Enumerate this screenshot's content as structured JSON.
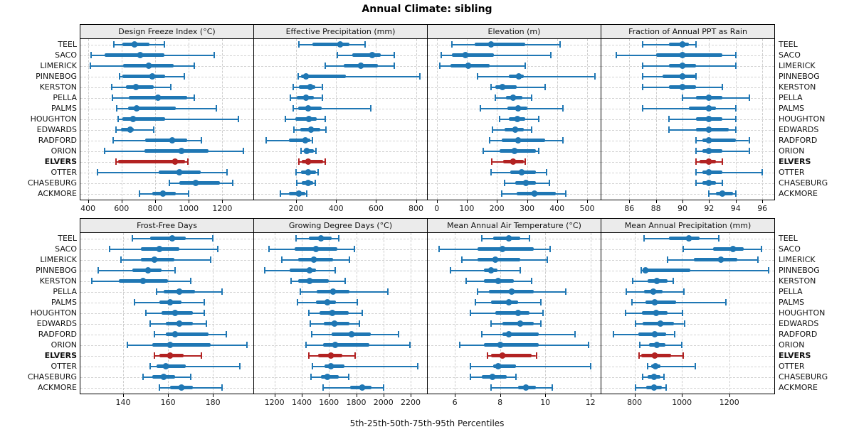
{
  "title": "Annual Climate: sibling",
  "axis_label": "5th-25th-50th-75th-95th Percentiles",
  "colors": {
    "bar": "#1f77b4",
    "highlight": "#b22222",
    "grid": "#cdcdcd",
    "header_bg": "#ebebeb",
    "border": "#000000"
  },
  "stations": [
    "TEEL",
    "SACO",
    "LIMERICK",
    "PINNEBOG",
    "KERSTON",
    "PELLA",
    "PALMS",
    "HOUGHTON",
    "EDWARDS",
    "RADFORD",
    "ORION",
    "ELVERS",
    "OTTER",
    "CHASEBURG",
    "ACKMORE"
  ],
  "highlight_station": "ELVERS",
  "chart_data": {
    "type": "percentile-dotplot",
    "percentiles": [
      "5th",
      "25th",
      "50th",
      "75th",
      "95th"
    ],
    "note": "Each row: [p5, p25, p50, p75, p95]; thick bar = p25-p75, dot = p50, whisker caps = p5/p95",
    "legend_position": "none",
    "grid": "dashed",
    "panels": [
      {
        "title": "Design Freeze Index (°C)",
        "grid_row": 0,
        "xlim": [
          355,
          1385
        ],
        "ticks": [
          400,
          600,
          800,
          1000,
          1200
        ],
        "series": [
          [
            555,
            605,
            675,
            765,
            855
          ],
          [
            420,
            500,
            710,
            855,
            1150
          ],
          [
            415,
            610,
            760,
            910,
            1035
          ],
          [
            590,
            605,
            785,
            860,
            975
          ],
          [
            540,
            625,
            685,
            790,
            895
          ],
          [
            545,
            645,
            815,
            990,
            1035
          ],
          [
            570,
            640,
            690,
            925,
            1165
          ],
          [
            580,
            605,
            670,
            860,
            1295
          ],
          [
            565,
            595,
            650,
            675,
            790
          ],
          [
            550,
            740,
            900,
            990,
            1075
          ],
          [
            500,
            735,
            955,
            1120,
            1325
          ],
          [
            565,
            580,
            920,
            980,
            995
          ],
          [
            455,
            820,
            945,
            1070,
            1230
          ],
          [
            885,
            945,
            1040,
            1185,
            1260
          ],
          [
            705,
            785,
            845,
            925,
            1000
          ]
        ]
      },
      {
        "title": "Effective Precipitation (mm)",
        "grid_row": 0,
        "xlim": [
          -10,
          855
        ],
        "ticks": [
          200,
          400,
          600,
          800
        ],
        "series": [
          [
            215,
            280,
            420,
            465,
            545
          ],
          [
            405,
            480,
            580,
            625,
            690
          ],
          [
            345,
            440,
            525,
            610,
            690
          ],
          [
            210,
            225,
            250,
            450,
            820
          ],
          [
            185,
            215,
            270,
            295,
            330
          ],
          [
            170,
            205,
            250,
            290,
            330
          ],
          [
            185,
            210,
            260,
            330,
            575
          ],
          [
            145,
            195,
            265,
            305,
            345
          ],
          [
            190,
            220,
            275,
            320,
            350
          ],
          [
            50,
            165,
            245,
            270,
            280
          ],
          [
            225,
            240,
            255,
            290,
            300
          ],
          [
            215,
            230,
            260,
            335,
            345
          ],
          [
            200,
            225,
            260,
            300,
            310
          ],
          [
            205,
            230,
            260,
            285,
            295
          ],
          [
            120,
            165,
            215,
            245,
            255
          ]
        ]
      },
      {
        "title": "Elevation (m)",
        "grid_row": 0,
        "xlim": [
          -30,
          545
        ],
        "ticks": [
          0,
          100,
          200,
          300,
          400,
          500
        ],
        "series": [
          [
            50,
            125,
            180,
            295,
            410
          ],
          [
            15,
            50,
            95,
            190,
            380
          ],
          [
            10,
            45,
            105,
            175,
            295
          ],
          [
            135,
            240,
            272,
            290,
            525
          ],
          [
            180,
            195,
            218,
            265,
            360
          ],
          [
            195,
            230,
            255,
            285,
            315
          ],
          [
            145,
            235,
            270,
            300,
            420
          ],
          [
            210,
            240,
            268,
            295,
            340
          ],
          [
            185,
            225,
            260,
            290,
            315
          ],
          [
            175,
            215,
            270,
            360,
            420
          ],
          [
            155,
            210,
            258,
            330,
            340
          ],
          [
            182,
            220,
            255,
            290,
            295
          ],
          [
            180,
            245,
            283,
            330,
            365
          ],
          [
            225,
            260,
            297,
            330,
            375
          ],
          [
            215,
            265,
            325,
            395,
            430
          ]
        ]
      },
      {
        "title": "Fraction of Annual PPT as Rain",
        "grid_row": 0,
        "xlim": [
          83.9,
          96.9
        ],
        "ticks": [
          86,
          88,
          90,
          92,
          94,
          96
        ],
        "series": [
          [
            87,
            89,
            90,
            90.5,
            91
          ],
          [
            85,
            88,
            90,
            93,
            94
          ],
          [
            87,
            89,
            90,
            91,
            94
          ],
          [
            87,
            88.5,
            90,
            91,
            91
          ],
          [
            87,
            89,
            90,
            91,
            93
          ],
          [
            90,
            91,
            92,
            93,
            95
          ],
          [
            87,
            90.5,
            92,
            92.5,
            94
          ],
          [
            89,
            91,
            92,
            93,
            94
          ],
          [
            89,
            91,
            92,
            93.5,
            94
          ],
          [
            91,
            91.5,
            92,
            94,
            95
          ],
          [
            91,
            91.5,
            92,
            93,
            95
          ],
          [
            91,
            91.3,
            92,
            92.5,
            93
          ],
          [
            91,
            91.5,
            92,
            93,
            96
          ],
          [
            91,
            91.5,
            92,
            92.5,
            93
          ],
          [
            92,
            92.5,
            93,
            93.8,
            94
          ]
        ]
      },
      {
        "title": "Frost-Free Days",
        "grid_row": 1,
        "xlim": [
          121,
          198
        ],
        "ticks": [
          140,
          160,
          180
        ],
        "series": [
          [
            144,
            152,
            162,
            168,
            180
          ],
          [
            134,
            148,
            156,
            165,
            182
          ],
          [
            139,
            148,
            154,
            163,
            179
          ],
          [
            129,
            144,
            151,
            157,
            163
          ],
          [
            126,
            138,
            149,
            160,
            170
          ],
          [
            155,
            158,
            165,
            172,
            184
          ],
          [
            145,
            156,
            161,
            166,
            176
          ],
          [
            150,
            157,
            163,
            171,
            176
          ],
          [
            152,
            159,
            165,
            171,
            177
          ],
          [
            154,
            159,
            163,
            178,
            186
          ],
          [
            142,
            153,
            161,
            179,
            195
          ],
          [
            154,
            156,
            161,
            167,
            175
          ],
          [
            152,
            155,
            159,
            168,
            192
          ],
          [
            149,
            153,
            158,
            163,
            170
          ],
          [
            156,
            161,
            166,
            171,
            184
          ]
        ]
      },
      {
        "title": "Growing Degree Days (°C)",
        "grid_row": 1,
        "xlim": [
          1050,
          2320
        ],
        "ticks": [
          1200,
          1400,
          1600,
          1800,
          2000,
          2200
        ],
        "series": [
          [
            1360,
            1450,
            1540,
            1620,
            1670
          ],
          [
            1160,
            1350,
            1505,
            1660,
            1785
          ],
          [
            1255,
            1375,
            1490,
            1630,
            1750
          ],
          [
            1130,
            1310,
            1460,
            1505,
            1645
          ],
          [
            1320,
            1375,
            1455,
            1600,
            1720
          ],
          [
            1390,
            1510,
            1630,
            1750,
            2030
          ],
          [
            1370,
            1505,
            1590,
            1650,
            1810
          ],
          [
            1450,
            1530,
            1625,
            1745,
            1845
          ],
          [
            1465,
            1560,
            1640,
            1750,
            1825
          ],
          [
            1475,
            1620,
            1765,
            1905,
            2110
          ],
          [
            1430,
            1555,
            1645,
            1895,
            2195
          ],
          [
            1450,
            1520,
            1615,
            1700,
            1790
          ],
          [
            1480,
            1565,
            1615,
            1715,
            2250
          ],
          [
            1470,
            1540,
            1590,
            1670,
            1745
          ],
          [
            1555,
            1755,
            1845,
            1910,
            2000
          ]
        ]
      },
      {
        "title": "Mean Annual Air Temperature (°C)",
        "grid_row": 1,
        "xlim": [
          4.8,
          12.45
        ],
        "ticks": [
          6,
          8,
          10,
          12
        ],
        "series": [
          [
            7.2,
            7.7,
            8.4,
            8.9,
            9.3
          ],
          [
            5.3,
            7.0,
            8.1,
            9.5,
            10.2
          ],
          [
            6.3,
            7.0,
            7.8,
            8.9,
            10.1
          ],
          [
            5.8,
            7.3,
            7.6,
            7.9,
            8.9
          ],
          [
            6.5,
            7.3,
            7.9,
            8.6,
            9.4
          ],
          [
            7.0,
            7.5,
            8.5,
            9.5,
            10.9
          ],
          [
            6.9,
            7.6,
            8.4,
            8.8,
            9.8
          ],
          [
            6.7,
            7.8,
            8.8,
            9.3,
            9.9
          ],
          [
            7.6,
            8.1,
            8.9,
            9.5,
            9.8
          ],
          [
            7.2,
            8.1,
            8.4,
            9.7,
            11.3
          ],
          [
            6.2,
            7.3,
            8.0,
            9.7,
            11.9
          ],
          [
            7.45,
            7.6,
            8.1,
            9.4,
            9.6
          ],
          [
            6.7,
            7.7,
            7.9,
            8.7,
            12.0
          ],
          [
            6.7,
            7.2,
            7.65,
            8.3,
            8.7
          ],
          [
            7.6,
            8.8,
            9.15,
            9.6,
            10.3
          ]
        ]
      },
      {
        "title": "Mean Annual Precipitation (mm)",
        "grid_row": 1,
        "xlim": [
          660,
          1390
        ],
        "ticks": [
          800,
          1000,
          1200
        ],
        "series": [
          [
            840,
            945,
            1030,
            1075,
            1155
          ],
          [
            1005,
            1130,
            1215,
            1260,
            1335
          ],
          [
            940,
            1050,
            1165,
            1235,
            1320
          ],
          [
            828,
            838,
            847,
            1035,
            1365
          ],
          [
            793,
            855,
            893,
            940,
            963
          ],
          [
            765,
            840,
            880,
            920,
            1008
          ],
          [
            790,
            845,
            885,
            975,
            1185
          ],
          [
            763,
            830,
            890,
            940,
            1002
          ],
          [
            805,
            835,
            908,
            965,
            1010
          ],
          [
            712,
            815,
            885,
            935,
            968
          ],
          [
            823,
            860,
            895,
            930,
            1000
          ],
          [
            820,
            828,
            885,
            955,
            1005
          ],
          [
            855,
            870,
            888,
            910,
            1055
          ],
          [
            835,
            855,
            883,
            910,
            925
          ],
          [
            805,
            850,
            883,
            915,
            932
          ]
        ]
      }
    ]
  }
}
